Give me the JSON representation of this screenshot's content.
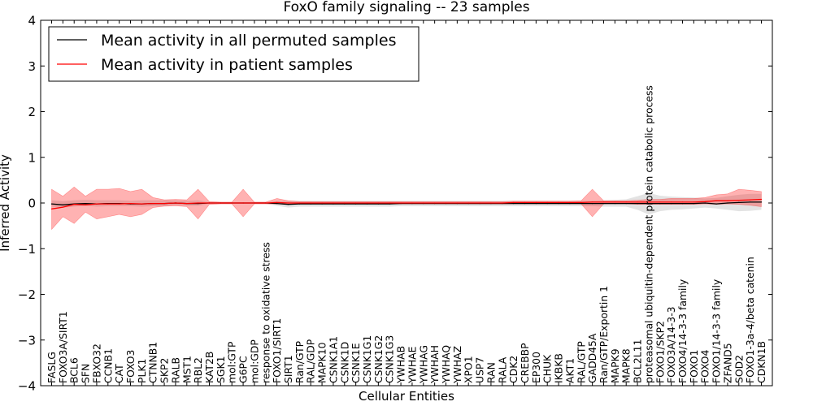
{
  "chart_data": {
    "type": "line",
    "title": "FoxO family signaling -- 23 samples",
    "xlabel": "Cellular Entities",
    "ylabel": "Inferred Activity",
    "ylim": [
      -4,
      4
    ],
    "yticks": [
      4,
      3,
      2,
      1,
      0,
      -1,
      -2,
      -3,
      -4
    ],
    "ytick_labels": [
      "4",
      "3",
      "2",
      "1",
      "0",
      "−1",
      "−2",
      "−3",
      "−4"
    ],
    "legend_position": "top-left",
    "categories": [
      "FASLG",
      "FOXO3A/SIRT1",
      "BCL6",
      "SFN",
      "FBXO32",
      "CCNB1",
      "CAT",
      "FOXO3",
      "PLK1",
      "CTNNB1",
      "SKP2",
      "RALB",
      "MST1",
      "RBL2",
      "KAT2B",
      "SGK1",
      "mol:GTP",
      "G6PC",
      "mol:GDP",
      "response to oxidative stress",
      "FOXO1/SIRT1",
      "SIRT1",
      "Ran/GTP",
      "RAL/GDP",
      "MAPK10",
      "CSNK1A1",
      "CSNK1D",
      "CSNK1E",
      "CSNK1G1",
      "CSNK1G2",
      "CSNK1G3",
      "YWHAB",
      "YWHAE",
      "YWHAG",
      "YWHAH",
      "YWHAQ",
      "YWHAZ",
      "XPO1",
      "USP7",
      "RAN",
      "RALA",
      "CDK2",
      "CREBBP",
      "EP300",
      "CHUK",
      "IKBKB",
      "AKT1",
      "RAL/GTP",
      "GADD45A",
      "Ran/GTP/Exportin 1",
      "MAPK9",
      "MAPK8",
      "BCL2L11",
      "proteasomal ubiquitin-dependent protein catabolic process",
      "FOXO1/SKP2",
      "FOXO3A/14-3-3",
      "FOXO4/14-3-3 family",
      "FOXO1",
      "FOXO4",
      "FOXO1/14-3-3 family",
      "ZFAND5",
      "SOD2",
      "FOXO1-3a-4/beta catenin",
      "CDKN1B"
    ],
    "series": [
      {
        "name": "Mean activity in all permuted samples",
        "color": "#000000",
        "values": [
          -0.02,
          -0.04,
          -0.02,
          -0.01,
          -0.02,
          -0.01,
          -0.01,
          -0.02,
          -0.02,
          -0.01,
          -0.01,
          0,
          -0.01,
          -0.01,
          0,
          0,
          0,
          0,
          0,
          0,
          -0.01,
          -0.03,
          -0.02,
          -0.02,
          -0.02,
          -0.02,
          -0.02,
          -0.02,
          -0.02,
          -0.02,
          -0.02,
          -0.01,
          -0.01,
          -0.01,
          -0.01,
          -0.01,
          -0.01,
          -0.01,
          -0.01,
          -0.01,
          -0.01,
          -0.01,
          -0.01,
          -0.01,
          -0.01,
          -0.01,
          -0.01,
          -0.01,
          -0.01,
          -0.01,
          -0.01,
          -0.01,
          -0.01,
          -0.01,
          -0.01,
          -0.01,
          -0.01,
          -0.01,
          0,
          -0.02,
          0,
          0.01,
          0.02,
          0.02
        ],
        "lower": [
          -0.08,
          -0.1,
          -0.08,
          -0.06,
          -0.08,
          -0.07,
          -0.07,
          -0.07,
          -0.08,
          -0.07,
          -0.07,
          -0.05,
          -0.06,
          -0.06,
          -0.02,
          -0.02,
          -0.02,
          -0.02,
          -0.02,
          -0.02,
          -0.06,
          -0.1,
          -0.08,
          -0.08,
          -0.08,
          -0.08,
          -0.08,
          -0.08,
          -0.08,
          -0.08,
          -0.08,
          -0.07,
          -0.07,
          -0.07,
          -0.07,
          -0.07,
          -0.07,
          -0.07,
          -0.07,
          -0.07,
          -0.07,
          -0.07,
          -0.07,
          -0.07,
          -0.07,
          -0.07,
          -0.07,
          -0.07,
          -0.07,
          -0.08,
          -0.08,
          -0.08,
          -0.15,
          -0.25,
          -0.18,
          -0.15,
          -0.14,
          -0.12,
          -0.1,
          -0.12,
          -0.15,
          -0.18,
          -0.17,
          -0.15
        ],
        "upper": [
          0.06,
          0.04,
          0.06,
          0.07,
          0.06,
          0.06,
          0.06,
          0.05,
          0.06,
          0.06,
          0.06,
          0.06,
          0.05,
          0.06,
          0.02,
          0.02,
          0.02,
          0.02,
          0.02,
          0.02,
          0.04,
          0.05,
          0.05,
          0.05,
          0.05,
          0.05,
          0.05,
          0.05,
          0.05,
          0.05,
          0.05,
          0.05,
          0.05,
          0.05,
          0.05,
          0.05,
          0.05,
          0.05,
          0.05,
          0.05,
          0.05,
          0.05,
          0.05,
          0.05,
          0.05,
          0.05,
          0.05,
          0.05,
          0.05,
          0.06,
          0.07,
          0.08,
          0.15,
          0.22,
          0.16,
          0.14,
          0.13,
          0.12,
          0.1,
          0.11,
          0.15,
          0.18,
          0.2,
          0.2
        ]
      },
      {
        "name": "Mean activity in patient samples",
        "color": "#ff0000",
        "values": [
          -0.13,
          -0.09,
          -0.03,
          -0.04,
          -0.02,
          -0.02,
          -0.02,
          -0.01,
          -0.02,
          -0.01,
          -0.01,
          0,
          -0.01,
          0,
          0,
          0,
          0,
          0,
          0,
          0,
          0.01,
          0,
          0,
          0,
          0,
          0,
          0,
          0,
          0,
          0,
          0,
          0,
          0,
          0,
          0,
          0,
          0,
          0,
          0,
          0,
          0,
          0.01,
          0.01,
          0.01,
          0.01,
          0.01,
          0.01,
          0.01,
          0.02,
          0.02,
          0.02,
          0.02,
          0.02,
          0.02,
          0.02,
          0.02,
          0.02,
          0.02,
          0.03,
          0.05,
          0.05,
          0.06,
          0.07,
          0.08
        ],
        "lower": [
          -0.58,
          -0.3,
          -0.45,
          -0.2,
          -0.35,
          -0.3,
          -0.25,
          -0.3,
          -0.25,
          -0.1,
          -0.07,
          -0.06,
          -0.08,
          -0.35,
          -0.03,
          -0.02,
          -0.02,
          -0.3,
          -0.02,
          -0.02,
          -0.02,
          -0.03,
          -0.02,
          -0.02,
          -0.02,
          -0.02,
          -0.02,
          -0.02,
          -0.02,
          -0.02,
          -0.02,
          -0.02,
          -0.02,
          -0.02,
          -0.02,
          -0.02,
          -0.02,
          -0.02,
          -0.02,
          -0.02,
          -0.02,
          -0.02,
          -0.02,
          -0.02,
          -0.02,
          -0.02,
          -0.02,
          -0.02,
          -0.3,
          -0.02,
          -0.02,
          -0.02,
          -0.03,
          -0.03,
          -0.03,
          -0.03,
          -0.03,
          -0.03,
          -0.02,
          -0.03,
          -0.02,
          -0.03,
          -0.05,
          -0.08
        ],
        "upper": [
          0.3,
          0.15,
          0.35,
          0.15,
          0.3,
          0.3,
          0.32,
          0.25,
          0.3,
          0.12,
          0.07,
          0.08,
          0.07,
          0.3,
          0.03,
          0.02,
          0.02,
          0.3,
          0.02,
          0.02,
          0.1,
          0.05,
          0.03,
          0.03,
          0.03,
          0.03,
          0.03,
          0.03,
          0.03,
          0.03,
          0.03,
          0.03,
          0.03,
          0.03,
          0.03,
          0.03,
          0.03,
          0.03,
          0.03,
          0.03,
          0.03,
          0.04,
          0.04,
          0.04,
          0.04,
          0.04,
          0.04,
          0.05,
          0.3,
          0.05,
          0.05,
          0.05,
          0.06,
          0.08,
          0.08,
          0.1,
          0.1,
          0.1,
          0.12,
          0.18,
          0.2,
          0.3,
          0.28,
          0.25
        ]
      }
    ]
  }
}
